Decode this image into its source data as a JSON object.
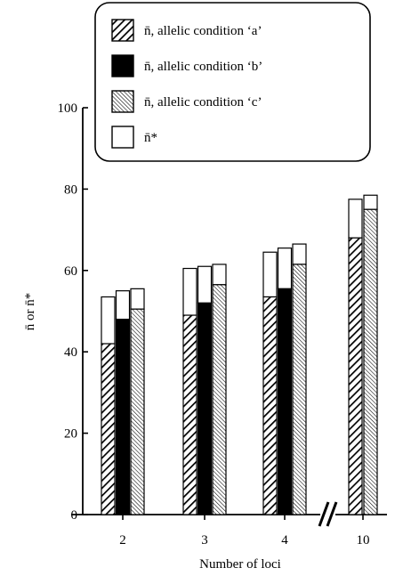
{
  "chart_data": {
    "type": "bar",
    "title": "",
    "xlabel": "Number of loci",
    "ylabel": "n̄ or n̄*",
    "ylim": [
      0,
      100
    ],
    "yticks": [
      0,
      20,
      40,
      60,
      80,
      100
    ],
    "categories": [
      "2",
      "3",
      "4",
      "10"
    ],
    "axis_break_between": [
      "4",
      "10"
    ],
    "bar_style": "stacked: n̄ (patterned) with n̄* extending above (white)",
    "series": [
      {
        "name": "n̄, allelic condition ‘a’",
        "pattern": "wide-diagonal-hatch",
        "values": [
          42,
          49,
          53.5,
          68
        ],
        "n_star": [
          53.5,
          60.5,
          64.5,
          77.5
        ]
      },
      {
        "name": "n̄, allelic condition ‘b’",
        "pattern": "solid-black",
        "values": [
          48,
          52,
          55.5,
          null
        ],
        "n_star": [
          55,
          61,
          65.5,
          null
        ]
      },
      {
        "name": "n̄, allelic condition ‘c’",
        "pattern": "fine-diagonal-hatch",
        "values": [
          50.5,
          56.5,
          61.5,
          75
        ],
        "n_star": [
          55.5,
          61.5,
          66.5,
          78.5
        ]
      }
    ],
    "legend": {
      "placement": "top",
      "entries": [
        {
          "label": "n̄, allelic condition ‘a’",
          "pattern": "wide-diagonal-hatch"
        },
        {
          "label": "n̄, allelic condition ‘b’",
          "pattern": "solid-black"
        },
        {
          "label": "n̄, allelic condition ‘c’",
          "pattern": "fine-diagonal-hatch"
        },
        {
          "label": "n̄*",
          "pattern": "white"
        }
      ]
    },
    "grid": false,
    "colors": {
      "black": "#000000",
      "white": "#ffffff"
    }
  }
}
